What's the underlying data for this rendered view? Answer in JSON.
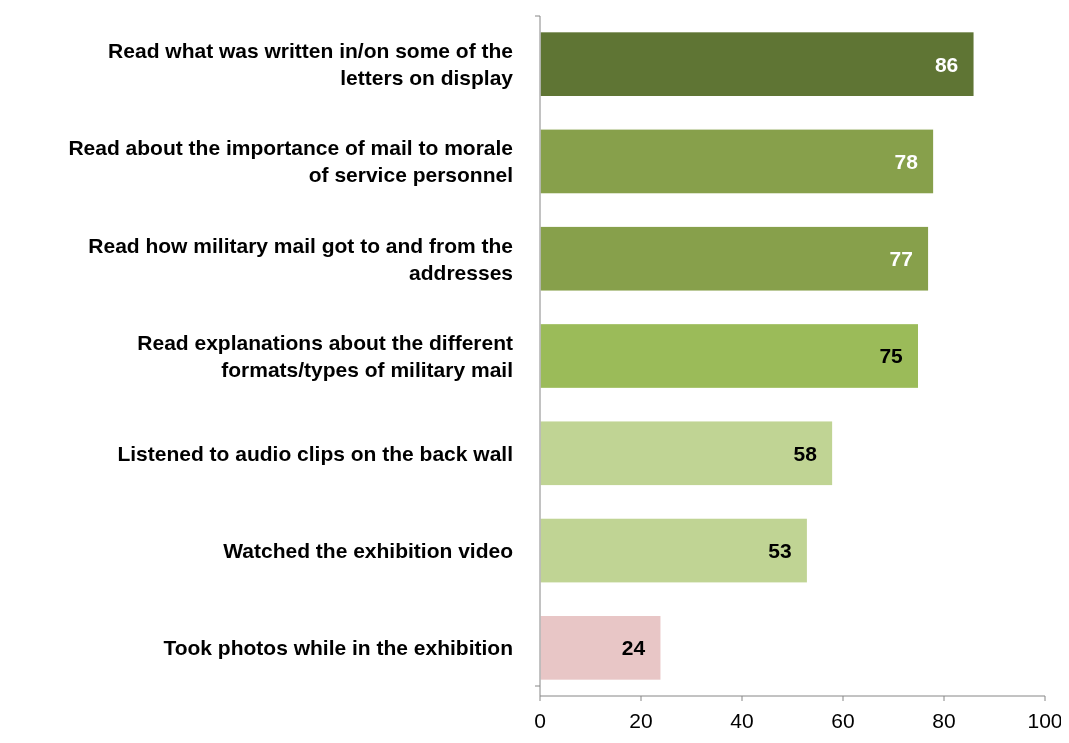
{
  "chart_data": {
    "type": "bar",
    "orientation": "horizontal",
    "categories": [
      "Read what was written in/on some of the letters on display",
      "Read about the importance of mail to morale of service personnel",
      "Read how military mail got to and from the addresses",
      "Read explanations about the different formats/types of military mail",
      "Listened to audio clips on the back wall",
      "Watched the exhibition video",
      "Took photos while in the exhibition"
    ],
    "values": [
      86,
      78,
      77,
      75,
      58,
      53,
      24
    ],
    "colors": [
      "#5f7534",
      "#87a04b",
      "#87a04b",
      "#9bbb59",
      "#c0d494",
      "#c0d494",
      "#e8c6c6"
    ],
    "xlim": [
      0,
      100
    ],
    "xticks": [
      0,
      20,
      40,
      60,
      80,
      100
    ],
    "data_labels": true
  }
}
